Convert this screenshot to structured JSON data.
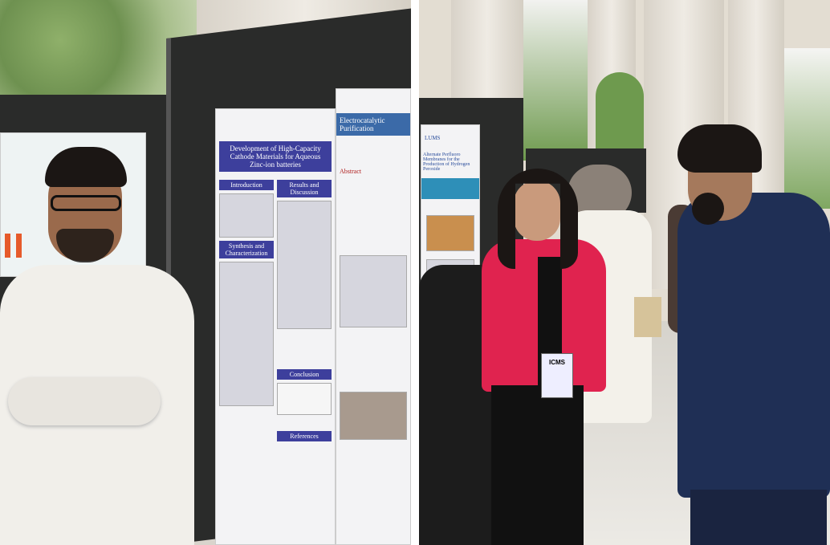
{
  "left_photo": {
    "poster_title": "Development of High-Capacity Cathode Materials for Aqueous Zinc-ion batteries",
    "poster2_title": "Electrocatalytic Purification",
    "sections": [
      "Introduction",
      "Results and Discussion",
      "Synthesis and Characterization",
      "Conclusion",
      "References"
    ],
    "abstract_label": "Abstract"
  },
  "right_photo": {
    "poster_logo": "LUMS",
    "poster_title": "Alternate Perfluoro Membranes for the Production of Hydrogen Peroxide",
    "badge_text": "ICMS"
  },
  "colors": {
    "poster_band": "#3d3f9c",
    "blazer": "#e0234f",
    "suit": "#1f2f55"
  }
}
